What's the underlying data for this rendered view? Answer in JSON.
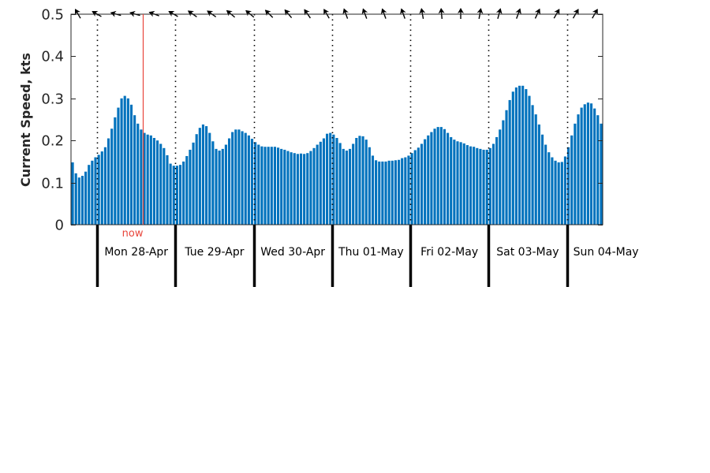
{
  "chart_data": {
    "type": "bar",
    "ylabel": "Current Speed, kts",
    "ylim": [
      0,
      0.5
    ],
    "yticks": [
      "0",
      "0.1",
      "0.2",
      "0.3",
      "0.4",
      "0.5"
    ],
    "bar_color": "#0072BD",
    "now_color": "#E8463C",
    "now_label": "now",
    "now_index": 22,
    "day_labels": [
      "Mon 28-Apr",
      "Tue 29-Apr",
      "Wed 30-Apr",
      "Thu 01-May",
      "Fri 02-May",
      "Sat 03-May",
      "Sun 04-May"
    ],
    "day_start_indices": [
      8,
      32,
      56,
      80,
      104,
      128,
      152
    ],
    "values": [
      0.148,
      0.122,
      0.112,
      0.116,
      0.126,
      0.142,
      0.152,
      0.16,
      0.166,
      0.174,
      0.184,
      0.205,
      0.228,
      0.255,
      0.278,
      0.3,
      0.306,
      0.3,
      0.285,
      0.26,
      0.24,
      0.226,
      0.218,
      0.214,
      0.212,
      0.206,
      0.2,
      0.192,
      0.182,
      0.165,
      0.145,
      0.14,
      0.14,
      0.142,
      0.15,
      0.163,
      0.178,
      0.195,
      0.215,
      0.23,
      0.238,
      0.234,
      0.218,
      0.198,
      0.18,
      0.176,
      0.18,
      0.19,
      0.205,
      0.22,
      0.226,
      0.226,
      0.222,
      0.218,
      0.212,
      0.204,
      0.196,
      0.19,
      0.186,
      0.185,
      0.185,
      0.185,
      0.185,
      0.183,
      0.18,
      0.178,
      0.175,
      0.172,
      0.17,
      0.168,
      0.169,
      0.168,
      0.17,
      0.175,
      0.182,
      0.19,
      0.197,
      0.205,
      0.216,
      0.218,
      0.214,
      0.206,
      0.194,
      0.18,
      0.176,
      0.18,
      0.192,
      0.206,
      0.211,
      0.21,
      0.202,
      0.184,
      0.164,
      0.153,
      0.15,
      0.15,
      0.15,
      0.152,
      0.152,
      0.153,
      0.154,
      0.158,
      0.16,
      0.164,
      0.17,
      0.177,
      0.183,
      0.192,
      0.203,
      0.212,
      0.22,
      0.228,
      0.232,
      0.232,
      0.227,
      0.218,
      0.208,
      0.202,
      0.198,
      0.196,
      0.193,
      0.189,
      0.186,
      0.185,
      0.182,
      0.18,
      0.178,
      0.178,
      0.182,
      0.192,
      0.208,
      0.226,
      0.248,
      0.272,
      0.296,
      0.316,
      0.326,
      0.33,
      0.33,
      0.322,
      0.306,
      0.284,
      0.262,
      0.238,
      0.214,
      0.19,
      0.172,
      0.16,
      0.152,
      0.148,
      0.149,
      0.162,
      0.184,
      0.212,
      0.24,
      0.262,
      0.278,
      0.286,
      0.29,
      0.288,
      0.276,
      0.26,
      0.24
    ],
    "arrow_directions_deg": [
      330,
      300,
      285,
      285,
      290,
      300,
      305,
      305,
      310,
      310,
      315,
      320,
      325,
      330,
      340,
      340,
      340,
      340,
      350,
      355,
      0,
      10,
      15,
      20,
      25,
      30,
      30,
      30,
      30,
      30,
      30,
      30,
      35
    ],
    "grid": false
  }
}
